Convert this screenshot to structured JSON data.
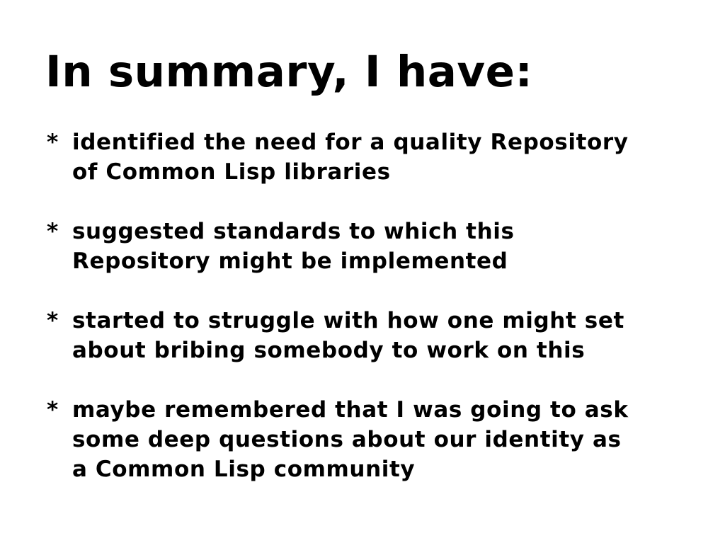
{
  "slide": {
    "title": "In summary, I have:",
    "bullet_marker": "*",
    "bullets": [
      {
        "lines": [
          "identified the need for a quality Repository",
          "of Common Lisp libraries"
        ]
      },
      {
        "lines": [
          "suggested standards to which this",
          "Repository might be implemented"
        ]
      },
      {
        "lines": [
          "started to struggle with how one might set",
          "about bribing somebody to work on this"
        ]
      },
      {
        "lines": [
          "maybe remembered that I was going to ask",
          "some deep questions about our identity as",
          "a Common Lisp community"
        ]
      }
    ]
  }
}
